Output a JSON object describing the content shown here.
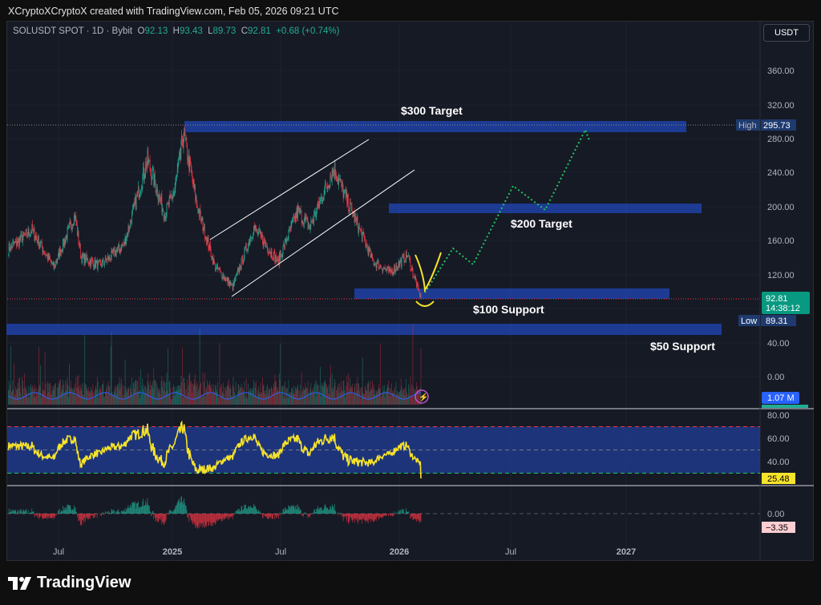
{
  "header": {
    "credit": "XCryptoXCryptoX created with TradingView.com, Feb 05, 2026 09:21 UTC"
  },
  "legend": {
    "symbol": "SOLUSDT SPOT · 1D · Bybit",
    "o_label": "O",
    "o": "92.13",
    "h_label": "H",
    "h": "93.43",
    "l_label": "L",
    "l": "89.73",
    "c_label": "C",
    "c": "92.81",
    "change": "+0.68 (+0.74%)"
  },
  "currency_button": "USDT",
  "price_axis": {
    "ticks": [
      "360.00",
      "320.00",
      "280.00",
      "240.00",
      "200.00",
      "160.00",
      "120.00",
      "40.00",
      "0.00"
    ],
    "high_label": "High",
    "high_value": "295.73",
    "low_label": "Low",
    "low_value": "89.31",
    "last_price": "92.81",
    "countdown": "14:38:12",
    "volume": "1.07 M"
  },
  "rsi_axis": {
    "ticks": [
      "80.00",
      "60.00",
      "40.00"
    ],
    "value": "25.48"
  },
  "macd_axis": {
    "ticks": [
      "0.00"
    ],
    "value": "−3.35"
  },
  "time_axis": [
    "Jul",
    "2025",
    "Jul",
    "2026",
    "Jul",
    "2027"
  ],
  "annotations": {
    "target_300": "$300 Target",
    "target_200": "$200 Target",
    "support_100": "$100 Support",
    "support_50": "$50 Support"
  },
  "colors": {
    "up": "#22ab94",
    "down": "#f23645",
    "zone": "#1e3fa0",
    "rsi": "#f7e32a",
    "projection": "#22c55e"
  },
  "price_path": [
    [
      "2024-04-12",
      150
    ],
    [
      "2024-05-20",
      172
    ],
    [
      "2024-06-24",
      128
    ],
    [
      "2024-07-28",
      190
    ],
    [
      "2024-08-07",
      140
    ],
    [
      "2024-09-06",
      130
    ],
    [
      "2024-10-15",
      155
    ],
    [
      "2024-11-22",
      255
    ],
    [
      "2024-12-20",
      190
    ],
    [
      "2025-01-05",
      220
    ],
    [
      "2025-01-19",
      285
    ],
    [
      "2025-02-10",
      200
    ],
    [
      "2025-03-10",
      130
    ],
    [
      "2025-04-08",
      105
    ],
    [
      "2025-05-12",
      175
    ],
    [
      "2025-06-20",
      135
    ],
    [
      "2025-07-22",
      195
    ],
    [
      "2025-08-10",
      175
    ],
    [
      "2025-09-18",
      245
    ],
    [
      "2025-10-10",
      205
    ],
    [
      "2025-10-25",
      180
    ],
    [
      "2025-11-20",
      135
    ],
    [
      "2025-12-18",
      122
    ],
    [
      "2026-01-14",
      143
    ],
    [
      "2026-02-05",
      92
    ]
  ],
  "footer": {
    "brand": "TradingView"
  }
}
